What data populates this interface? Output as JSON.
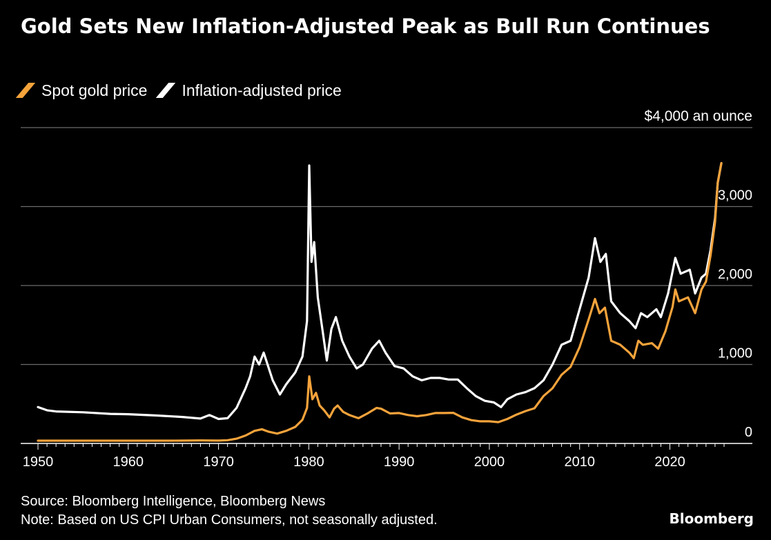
{
  "chart_data": {
    "type": "line",
    "title": "Gold Sets New Inflation-Adjusted Peak as Bull Run Continues",
    "ylabel": "$4,000 an ounce",
    "ylim": [
      0,
      4000
    ],
    "xlim": [
      1950,
      2026
    ],
    "y_ticks": [
      {
        "value": 0,
        "label": "0"
      },
      {
        "value": 1000,
        "label": "1,000"
      },
      {
        "value": 2000,
        "label": "2,000"
      },
      {
        "value": 3000,
        "label": "3,000"
      },
      {
        "value": 4000,
        "label": "$4,000 an ounce"
      }
    ],
    "x_ticks": [
      1950,
      1960,
      1970,
      1980,
      1990,
      2000,
      2010,
      2020
    ],
    "grid": "horizontal",
    "legend_position": "top-left",
    "series": [
      {
        "name": "Spot gold price",
        "color": "#F5A33B",
        "points": [
          [
            1950,
            35
          ],
          [
            1955,
            35
          ],
          [
            1960,
            35
          ],
          [
            1965,
            35
          ],
          [
            1968,
            38
          ],
          [
            1970,
            36
          ],
          [
            1971,
            41
          ],
          [
            1972,
            60
          ],
          [
            1973,
            100
          ],
          [
            1974,
            160
          ],
          [
            1974.8,
            180
          ],
          [
            1975.5,
            150
          ],
          [
            1976.5,
            125
          ],
          [
            1977.5,
            160
          ],
          [
            1978.5,
            210
          ],
          [
            1979.3,
            300
          ],
          [
            1979.8,
            450
          ],
          [
            1980.05,
            850
          ],
          [
            1980.4,
            560
          ],
          [
            1980.8,
            640
          ],
          [
            1981.2,
            480
          ],
          [
            1981.7,
            420
          ],
          [
            1982.3,
            330
          ],
          [
            1982.8,
            440
          ],
          [
            1983.2,
            480
          ],
          [
            1983.8,
            400
          ],
          [
            1984.5,
            360
          ],
          [
            1985.5,
            320
          ],
          [
            1986.5,
            380
          ],
          [
            1987.5,
            450
          ],
          [
            1988,
            440
          ],
          [
            1989,
            380
          ],
          [
            1990,
            385
          ],
          [
            1991,
            360
          ],
          [
            1992,
            345
          ],
          [
            1993,
            360
          ],
          [
            1994,
            385
          ],
          [
            1995,
            385
          ],
          [
            1996,
            388
          ],
          [
            1997,
            330
          ],
          [
            1998,
            295
          ],
          [
            1999,
            280
          ],
          [
            2000,
            280
          ],
          [
            2001,
            270
          ],
          [
            2002,
            310
          ],
          [
            2003,
            365
          ],
          [
            2004,
            410
          ],
          [
            2005,
            445
          ],
          [
            2006,
            600
          ],
          [
            2007,
            700
          ],
          [
            2008,
            870
          ],
          [
            2009,
            970
          ],
          [
            2010,
            1220
          ],
          [
            2011,
            1570
          ],
          [
            2011.7,
            1830
          ],
          [
            2012.2,
            1650
          ],
          [
            2012.8,
            1720
          ],
          [
            2013.5,
            1300
          ],
          [
            2014.5,
            1250
          ],
          [
            2015.5,
            1150
          ],
          [
            2016,
            1080
          ],
          [
            2016.5,
            1300
          ],
          [
            2017,
            1250
          ],
          [
            2018,
            1270
          ],
          [
            2018.7,
            1200
          ],
          [
            2019.5,
            1420
          ],
          [
            2020.3,
            1730
          ],
          [
            2020.6,
            1950
          ],
          [
            2021,
            1800
          ],
          [
            2022,
            1850
          ],
          [
            2022.8,
            1650
          ],
          [
            2023.5,
            1950
          ],
          [
            2024,
            2050
          ],
          [
            2024.5,
            2380
          ],
          [
            2025,
            2800
          ],
          [
            2025.3,
            3300
          ],
          [
            2025.7,
            3550
          ]
        ]
      },
      {
        "name": "Inflation-adjusted price",
        "color": "#FFFFFF",
        "points": [
          [
            1950,
            460
          ],
          [
            1951,
            420
          ],
          [
            1952,
            405
          ],
          [
            1955,
            395
          ],
          [
            1958,
            375
          ],
          [
            1960,
            370
          ],
          [
            1963,
            355
          ],
          [
            1966,
            335
          ],
          [
            1968,
            315
          ],
          [
            1969,
            360
          ],
          [
            1970,
            310
          ],
          [
            1971,
            320
          ],
          [
            1972,
            450
          ],
          [
            1973,
            700
          ],
          [
            1973.5,
            850
          ],
          [
            1974,
            1100
          ],
          [
            1974.5,
            1000
          ],
          [
            1975,
            1150
          ],
          [
            1976,
            800
          ],
          [
            1976.8,
            620
          ],
          [
            1977.5,
            750
          ],
          [
            1978.5,
            900
          ],
          [
            1979.3,
            1100
          ],
          [
            1979.8,
            1550
          ],
          [
            1980.05,
            3520
          ],
          [
            1980.3,
            2300
          ],
          [
            1980.6,
            2550
          ],
          [
            1981,
            1850
          ],
          [
            1981.5,
            1450
          ],
          [
            1982,
            1050
          ],
          [
            1982.5,
            1450
          ],
          [
            1983,
            1600
          ],
          [
            1983.7,
            1300
          ],
          [
            1984.5,
            1100
          ],
          [
            1985.3,
            950
          ],
          [
            1986,
            1000
          ],
          [
            1987,
            1200
          ],
          [
            1987.8,
            1300
          ],
          [
            1988.5,
            1150
          ],
          [
            1989.5,
            980
          ],
          [
            1990.5,
            950
          ],
          [
            1991.5,
            850
          ],
          [
            1992.5,
            800
          ],
          [
            1993.5,
            830
          ],
          [
            1994.5,
            830
          ],
          [
            1995.5,
            810
          ],
          [
            1996.5,
            810
          ],
          [
            1997.5,
            700
          ],
          [
            1998.5,
            600
          ],
          [
            1999.5,
            540
          ],
          [
            2000.5,
            520
          ],
          [
            2001.3,
            460
          ],
          [
            2002,
            560
          ],
          [
            2003,
            620
          ],
          [
            2004,
            650
          ],
          [
            2005,
            700
          ],
          [
            2006,
            800
          ],
          [
            2007,
            1000
          ],
          [
            2008,
            1250
          ],
          [
            2009,
            1300
          ],
          [
            2010,
            1700
          ],
          [
            2011,
            2100
          ],
          [
            2011.7,
            2600
          ],
          [
            2012.3,
            2300
          ],
          [
            2012.9,
            2400
          ],
          [
            2013.5,
            1800
          ],
          [
            2014.5,
            1650
          ],
          [
            2015.5,
            1550
          ],
          [
            2016.2,
            1460
          ],
          [
            2016.8,
            1650
          ],
          [
            2017.5,
            1600
          ],
          [
            2018.5,
            1700
          ],
          [
            2019,
            1600
          ],
          [
            2019.8,
            1900
          ],
          [
            2020.6,
            2350
          ],
          [
            2021.2,
            2150
          ],
          [
            2022.2,
            2200
          ],
          [
            2022.8,
            1900
          ],
          [
            2023.5,
            2100
          ],
          [
            2024,
            2150
          ],
          [
            2024.5,
            2450
          ],
          [
            2025,
            2850
          ],
          [
            2025.3,
            3300
          ],
          [
            2025.7,
            3550
          ]
        ]
      }
    ]
  },
  "legend": [
    {
      "label": "Spot gold price",
      "color": "#F5A33B"
    },
    {
      "label": "Inflation-adjusted price",
      "color": "#FFFFFF"
    }
  ],
  "footer": {
    "source": "Source: Bloomberg Intelligence, Bloomberg News",
    "note": "Note: Based on US CPI Urban Consumers, not seasonally adjusted.",
    "brand": "Bloomberg"
  }
}
